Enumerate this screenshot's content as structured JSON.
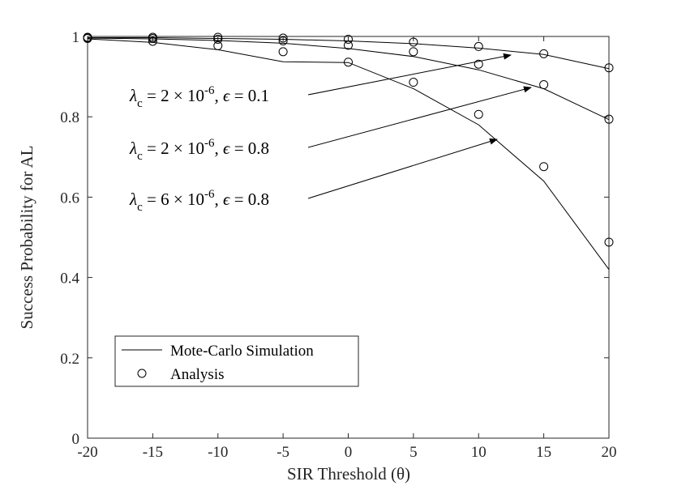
{
  "chart_data": {
    "type": "line",
    "xlabel": "SIR Threshold (θ)",
    "ylabel": "Success Probability for AL",
    "xlim": [
      -20,
      20
    ],
    "ylim": [
      0,
      1
    ],
    "xticks": [
      -20,
      -15,
      -10,
      -5,
      0,
      5,
      10,
      15,
      20
    ],
    "yticks": [
      0,
      0.2,
      0.4,
      0.6,
      0.8,
      1
    ],
    "x": [
      -20,
      -15,
      -10,
      -5,
      0,
      5,
      10,
      15,
      20
    ],
    "grid": false,
    "legend": {
      "position": "bottom-left",
      "entries": [
        {
          "label": "Mote-Carlo Simulation",
          "style": "line"
        },
        {
          "label": "Analysis",
          "style": "circle-marker"
        }
      ]
    },
    "series": [
      {
        "key": "eps01",
        "simulation": [
          0.997,
          0.997,
          0.995,
          0.993,
          0.989,
          0.982,
          0.971,
          0.955,
          0.92
        ],
        "analysis": [
          0.998,
          0.998,
          0.998,
          0.996,
          0.993,
          0.986,
          0.975,
          0.957,
          0.922
        ]
      },
      {
        "key": "eps08_low",
        "simulation": [
          0.996,
          0.994,
          0.99,
          0.983,
          0.97,
          0.95,
          0.917,
          0.87,
          0.793
        ],
        "analysis": [
          0.997,
          0.995,
          0.993,
          0.989,
          0.978,
          0.962,
          0.931,
          0.88,
          0.794
        ]
      },
      {
        "key": "eps08_high",
        "simulation": [
          0.994,
          0.985,
          0.967,
          0.937,
          0.935,
          0.87,
          0.78,
          0.64,
          0.42
        ],
        "analysis": [
          0.995,
          0.988,
          0.977,
          0.962,
          0.936,
          0.886,
          0.806,
          0.676,
          0.488
        ]
      }
    ],
    "annotations": [
      {
        "lambda_sub": "c",
        "mantissa": "2",
        "exponent": "-6",
        "epsilon": "0.1",
        "target_x": 12,
        "target_y": 0.955
      },
      {
        "lambda_sub": "c",
        "mantissa": "2",
        "exponent": "-6",
        "epsilon": "0.8",
        "target_x": 14.5,
        "target_y": 0.875
      },
      {
        "lambda_sub": "c",
        "mantissa": "6",
        "exponent": "-6",
        "epsilon": "0.8",
        "target_x": 12,
        "target_y": 0.74
      }
    ]
  }
}
